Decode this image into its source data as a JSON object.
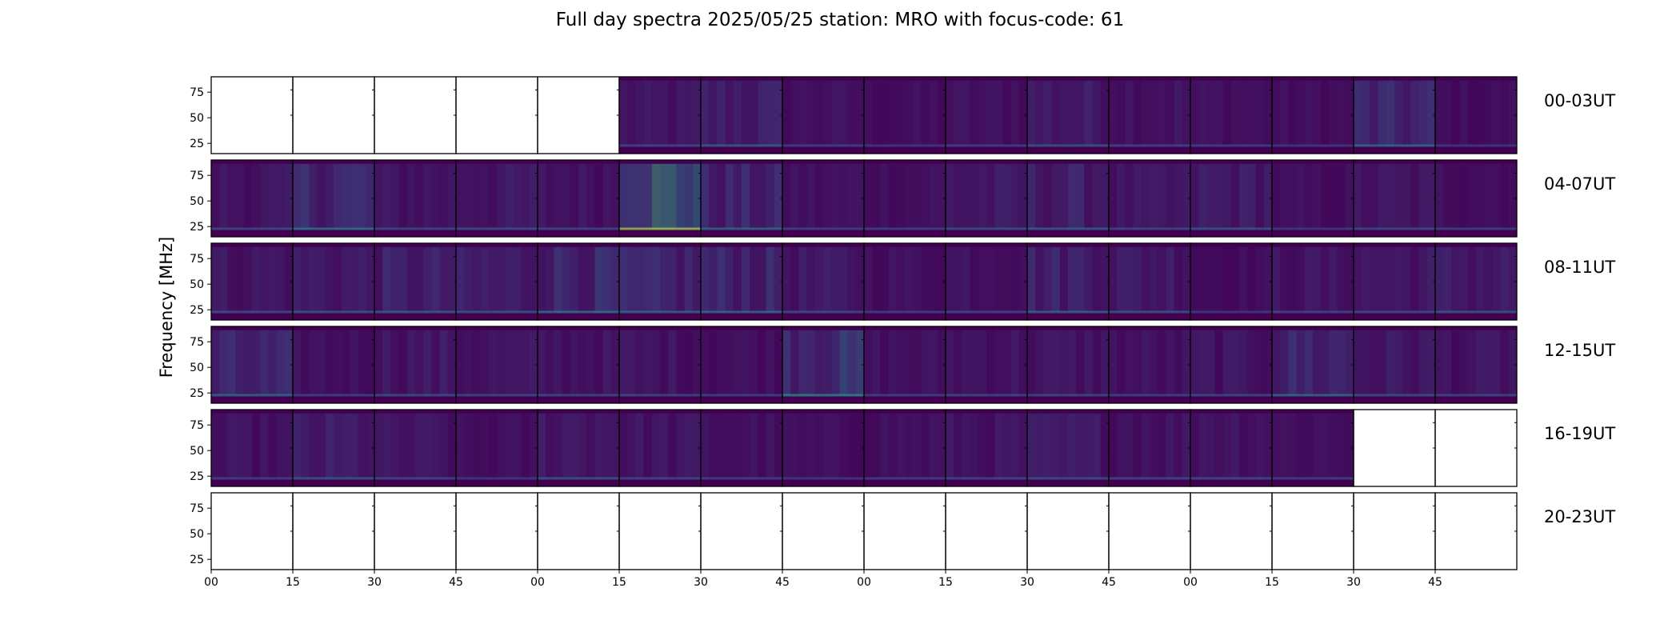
{
  "chart_data": {
    "type": "heatmap",
    "title": "Full day spectra 2025/05/25 station: MRO with focus-code: 61",
    "ylabel": "Frequency [MHz]",
    "xlabel": "",
    "yticks": [
      25,
      50,
      75
    ],
    "ylim": [
      15,
      90
    ],
    "xticks": [
      "00",
      "15",
      "30",
      "45",
      "00",
      "15",
      "30",
      "45",
      "00",
      "15",
      "30",
      "45",
      "00",
      "15",
      "30",
      "45"
    ],
    "row_labels": [
      "00-03UT",
      "04-07UT",
      "08-11UT",
      "12-15UT",
      "16-19UT",
      "20-23UT"
    ],
    "colormap": [
      "#440154",
      "#3b528b",
      "#21918c",
      "#5ec962",
      "#fde725"
    ],
    "panels_per_row": 16,
    "data_availability": [
      [
        0,
        0,
        0,
        0,
        0,
        1,
        1,
        1,
        1,
        1,
        1,
        1,
        1,
        1,
        1,
        1
      ],
      [
        1,
        1,
        1,
        1,
        1,
        1,
        1,
        1,
        1,
        1,
        1,
        1,
        1,
        1,
        1,
        1
      ],
      [
        1,
        1,
        1,
        1,
        1,
        1,
        1,
        1,
        1,
        1,
        1,
        1,
        1,
        1,
        1,
        1
      ],
      [
        1,
        1,
        1,
        1,
        1,
        1,
        1,
        1,
        1,
        1,
        1,
        1,
        1,
        1,
        1,
        1
      ],
      [
        1,
        1,
        1,
        1,
        1,
        1,
        1,
        1,
        1,
        1,
        1,
        1,
        1,
        1,
        0,
        0
      ],
      [
        0,
        0,
        0,
        0,
        0,
        0,
        0,
        0,
        0,
        0,
        0,
        0,
        0,
        0,
        0,
        0
      ]
    ],
    "panel_intensity": [
      [
        0,
        0,
        0,
        0,
        0,
        0.12,
        0.18,
        0.1,
        0.08,
        0.1,
        0.16,
        0.12,
        0.1,
        0.08,
        0.22,
        0.08
      ],
      [
        0.12,
        0.25,
        0.12,
        0.14,
        0.12,
        0.55,
        0.2,
        0.1,
        0.1,
        0.14,
        0.18,
        0.12,
        0.16,
        0.08,
        0.12,
        0.1
      ],
      [
        0.14,
        0.16,
        0.18,
        0.16,
        0.24,
        0.2,
        0.22,
        0.14,
        0.1,
        0.12,
        0.2,
        0.16,
        0.08,
        0.12,
        0.14,
        0.16
      ],
      [
        0.2,
        0.1,
        0.14,
        0.12,
        0.12,
        0.12,
        0.1,
        0.3,
        0.1,
        0.12,
        0.12,
        0.1,
        0.12,
        0.22,
        0.14,
        0.12
      ],
      [
        0.1,
        0.16,
        0.12,
        0.08,
        0.16,
        0.12,
        0.1,
        0.08,
        0.1,
        0.12,
        0.14,
        0.12,
        0.14,
        0.1,
        0,
        0
      ],
      [
        0,
        0,
        0,
        0,
        0,
        0,
        0,
        0,
        0,
        0,
        0,
        0,
        0,
        0,
        0,
        0
      ]
    ]
  }
}
